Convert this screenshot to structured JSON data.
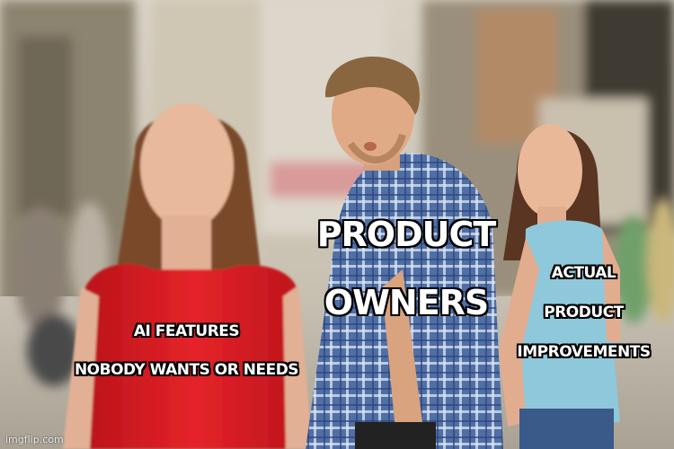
{
  "captions": {
    "ai_features": [
      "AI FEATURES",
      "NOBODY WANTS OR NEEDS"
    ],
    "product_owners": [
      "PRODUCT",
      "OWNERS"
    ],
    "actual_improvements": [
      "ACTUAL",
      "PRODUCT",
      "IMPROVEMENTS"
    ]
  },
  "watermark": "imgflip.com",
  "colors": {
    "caption_fill": "#ffffff",
    "caption_stroke": "#000000",
    "red_dress": "#e11b22",
    "plaid_shirt": "#5b7bb0",
    "blue_top": "#8ec6d9"
  }
}
